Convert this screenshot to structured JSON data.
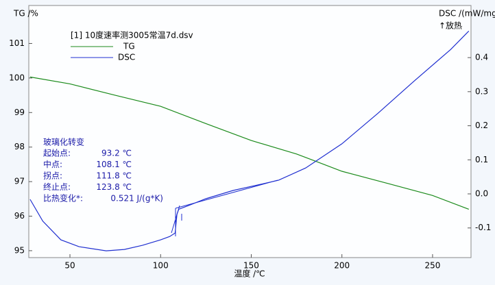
{
  "chart_data": {
    "type": "line",
    "legend_title": "[1] 10度速率测3005常温7d.dsv",
    "xlabel": "温度 /℃",
    "ylabel": "TG /%",
    "y2label": "DSC /(mW/mg",
    "y2note": "↑放热",
    "xlim": [
      27.3,
      271.2
    ],
    "xticks": [
      50,
      100,
      150,
      200,
      250
    ],
    "ylim": [
      94.8,
      102.1
    ],
    "yticks": [
      95,
      96,
      97,
      98,
      99,
      100,
      101
    ],
    "y2lim": [
      -0.187,
      0.553
    ],
    "y2ticks": [
      -0.1,
      {
        "value": 0,
        "label": "0.0"
      },
      0.1,
      0.2,
      0.3,
      0.4
    ],
    "series": [
      {
        "name": "TG",
        "color": "#1a8a1a",
        "axis": "y",
        "x": [
          28,
          50,
          75,
          100,
          125,
          150,
          175,
          185,
          200,
          225,
          250,
          270
        ],
        "values": [
          100.03,
          99.83,
          99.5,
          99.18,
          98.68,
          98.19,
          97.8,
          97.6,
          97.3,
          96.95,
          96.6,
          96.2
        ]
      },
      {
        "name": "DSC",
        "color": "#1f2fd0",
        "axis": "y2",
        "x": [
          28,
          35,
          45,
          55,
          70,
          80,
          90,
          100,
          105,
          108,
          109,
          110,
          115,
          125,
          140,
          150,
          165,
          180,
          200,
          220,
          240,
          260,
          270
        ],
        "values": [
          -0.016,
          -0.08,
          -0.135,
          -0.155,
          -0.167,
          -0.163,
          -0.151,
          -0.135,
          -0.125,
          -0.115,
          -0.06,
          -0.045,
          -0.035,
          -0.014,
          0.01,
          0.022,
          0.04,
          0.076,
          0.147,
          0.237,
          0.332,
          0.424,
          0.478
        ]
      }
    ],
    "annotation": {
      "title": "玻璃化转变",
      "rows": [
        [
          "起始点:",
          "93.2 ℃"
        ],
        [
          "中点:",
          "108.1 ℃"
        ],
        [
          "拐点:",
          "111.8 ℃"
        ],
        [
          "终止点:",
          "123.8 ℃"
        ],
        [
          "比热变化*:",
          "0.521 J/(g*K)"
        ]
      ]
    }
  }
}
